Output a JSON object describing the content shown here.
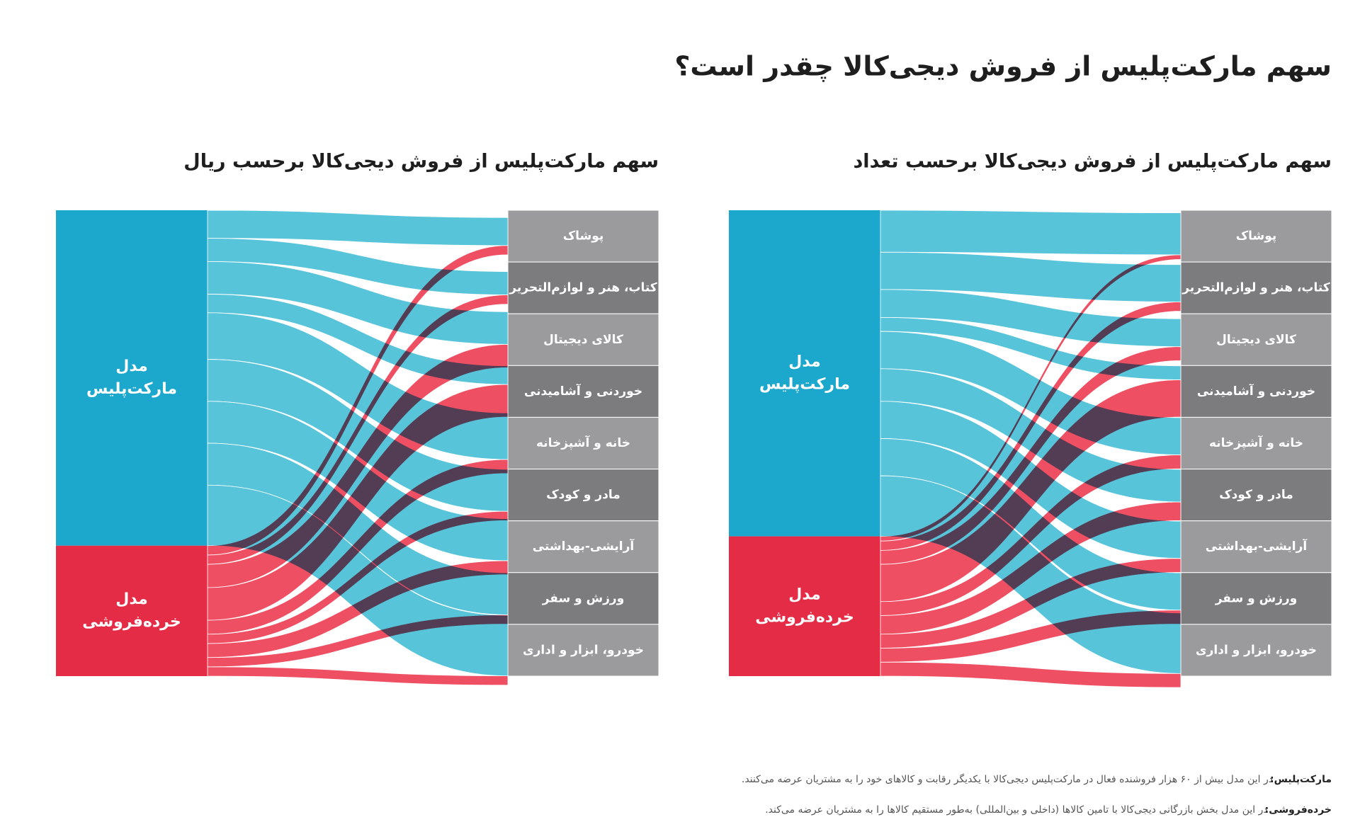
{
  "title": "سهم مارکت‌پلیس از فروش دیجی‌کالا چقدر است؟",
  "chart_data": [
    {
      "type": "sankey",
      "title": "سهم مارکت‌پلیس از فروش دیجی‌کالا برحسب تعداد",
      "sources": [
        [
          "مدل",
          "مارکت‌پلیس"
        ],
        [
          "مدل",
          "خرده‌فروشی"
        ]
      ],
      "source_colors": [
        "#1ca7cd",
        "#e42c46"
      ],
      "categories": [
        "پوشاک",
        "کتاب، هنر و لوازم‌التحریر",
        "کالای دیجیتال",
        "خوردنی و آشامیدنی",
        "خانه و آشپزخانه",
        "مادر و کودک",
        "آرایشی-بهداشتی",
        "ورزش و سفر",
        "خودرو، ابزار و اداری"
      ],
      "series": [
        {
          "color": "#58c4d9",
          "values": [
            9,
            8,
            6,
            3,
            8,
            7,
            8,
            8,
            13
          ]
        },
        {
          "color": "#ef4f63",
          "values": [
            1,
            2,
            3,
            8,
            3,
            4,
            3,
            3,
            3
          ]
        }
      ]
    },
    {
      "type": "sankey",
      "title": "سهم مارکت‌پلیس از فروش دیجی‌کالا برحسب ریال",
      "sources": [
        [
          "مدل",
          "مارکت‌پلیس"
        ],
        [
          "مدل",
          "خرده‌فروشی"
        ]
      ],
      "source_colors": [
        "#1ca7cd",
        "#e42c46"
      ],
      "categories": [
        "پوشاک",
        "کتاب، هنر و لوازم‌التحریر",
        "کالای دیجیتال",
        "خوردنی و آشامیدنی",
        "خانه و آشپزخانه",
        "مادر و کودک",
        "آرایشی-بهداشتی",
        "ورزش و سفر",
        "خودرو، ابزار و اداری"
      ],
      "series": [
        {
          "color": "#58c4d9",
          "values": [
            6,
            5,
            7,
            4,
            10,
            9,
            9,
            9,
            13
          ]
        },
        {
          "color": "#ef4f63",
          "values": [
            2,
            2,
            5,
            7,
            3,
            2,
            3,
            2,
            2
          ]
        }
      ]
    }
  ],
  "notes": [
    {
      "term": "مارکت‌پلیس:",
      "text": "در این مدل بیش از ۶۰ هزار فروشنده فعال در مارکت‌پلیس دیجی‌کالا با یکدیگر رقابت و کالاهای خود را به مشتریان عرضه می‌کنند."
    },
    {
      "term": "خرده‌فروشی:",
      "text": "در این مدل بخش بازرگانی دیجی‌کالا با تامین کالاها (داخلی و بین‌المللی) به‌طور مستقیم کالاها را به مشتریان عرضه می‌کند."
    }
  ]
}
